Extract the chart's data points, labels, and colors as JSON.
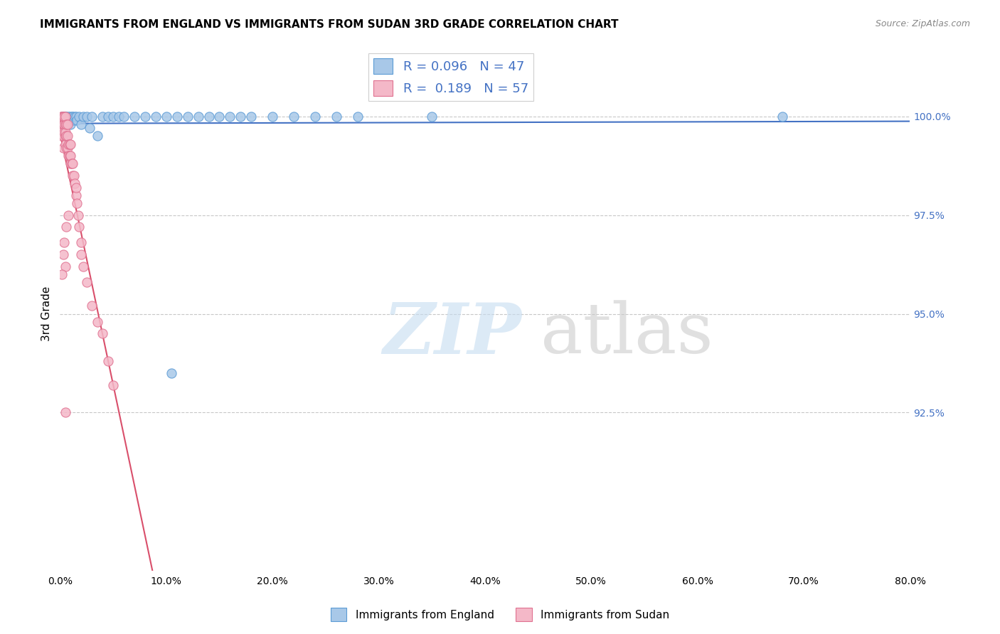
{
  "title": "IMMIGRANTS FROM ENGLAND VS IMMIGRANTS FROM SUDAN 3RD GRADE CORRELATION CHART",
  "source": "Source: ZipAtlas.com",
  "ylabel": "3rd Grade",
  "x_tick_labels": [
    "0.0%",
    "10.0%",
    "20.0%",
    "30.0%",
    "40.0%",
    "50.0%",
    "60.0%",
    "70.0%",
    "80.0%"
  ],
  "x_tick_values": [
    0.0,
    10.0,
    20.0,
    30.0,
    40.0,
    50.0,
    60.0,
    70.0,
    80.0
  ],
  "y_tick_labels_right": [
    "100.0%",
    "97.5%",
    "95.0%",
    "92.5%"
  ],
  "y_tick_values": [
    100.0,
    97.5,
    95.0,
    92.5
  ],
  "xlim": [
    0.0,
    80.0
  ],
  "ylim": [
    88.5,
    101.5
  ],
  "legend_label_england": "Immigrants from England",
  "legend_label_sudan": "Immigrants from Sudan",
  "england_color": "#a8c8e8",
  "sudan_color": "#f4b8c8",
  "england_edge_color": "#5b9bd5",
  "sudan_edge_color": "#e07090",
  "england_line_color": "#4472c4",
  "sudan_line_color": "#d94f6b",
  "england_R": 0.096,
  "england_N": 47,
  "sudan_R": 0.189,
  "sudan_N": 57,
  "background_color": "#ffffff",
  "grid_color": "#c8c8c8",
  "right_axis_color": "#4472c4",
  "eng_x": [
    0.2,
    0.3,
    0.4,
    0.5,
    0.6,
    0.7,
    0.8,
    0.9,
    1.0,
    1.1,
    1.2,
    1.3,
    1.4,
    1.5,
    1.6,
    1.8,
    2.0,
    2.2,
    2.5,
    2.8,
    3.0,
    3.5,
    4.0,
    4.5,
    5.0,
    5.5,
    6.0,
    7.0,
    8.0,
    9.0,
    10.0,
    11.0,
    12.0,
    13.0,
    14.0,
    15.0,
    16.0,
    17.0,
    18.0,
    20.0,
    22.0,
    24.0,
    26.0,
    28.0,
    35.0,
    68.0,
    10.5
  ],
  "eng_y": [
    100.0,
    99.8,
    100.0,
    100.0,
    100.0,
    99.9,
    100.0,
    100.0,
    99.8,
    100.0,
    100.0,
    99.9,
    100.0,
    100.0,
    99.9,
    100.0,
    99.8,
    100.0,
    100.0,
    99.7,
    100.0,
    99.5,
    100.0,
    100.0,
    100.0,
    100.0,
    100.0,
    100.0,
    100.0,
    100.0,
    100.0,
    100.0,
    100.0,
    100.0,
    100.0,
    100.0,
    100.0,
    100.0,
    100.0,
    100.0,
    100.0,
    100.0,
    100.0,
    100.0,
    100.0,
    100.0,
    93.5
  ],
  "sud_x": [
    0.1,
    0.1,
    0.1,
    0.2,
    0.2,
    0.2,
    0.3,
    0.3,
    0.3,
    0.3,
    0.4,
    0.4,
    0.4,
    0.5,
    0.5,
    0.5,
    0.5,
    0.5,
    0.6,
    0.6,
    0.6,
    0.7,
    0.7,
    0.7,
    0.8,
    0.8,
    0.9,
    0.9,
    1.0,
    1.0,
    1.0,
    1.1,
    1.2,
    1.2,
    1.3,
    1.4,
    1.5,
    1.5,
    1.6,
    1.7,
    1.8,
    2.0,
    2.0,
    2.2,
    2.5,
    3.0,
    3.5,
    4.0,
    4.5,
    5.0,
    0.8,
    0.6,
    0.4,
    0.3,
    0.5,
    0.2,
    0.5
  ],
  "sud_y": [
    99.8,
    100.0,
    99.5,
    99.8,
    100.0,
    99.6,
    99.5,
    99.8,
    100.0,
    99.2,
    99.6,
    99.8,
    100.0,
    99.3,
    99.5,
    99.8,
    100.0,
    99.6,
    99.2,
    99.5,
    99.8,
    99.2,
    99.5,
    99.8,
    99.0,
    99.3,
    99.0,
    99.3,
    98.8,
    99.0,
    99.3,
    98.8,
    98.5,
    98.8,
    98.5,
    98.3,
    98.0,
    98.2,
    97.8,
    97.5,
    97.2,
    96.8,
    96.5,
    96.2,
    95.8,
    95.2,
    94.8,
    94.5,
    93.8,
    93.2,
    97.5,
    97.2,
    96.8,
    96.5,
    96.2,
    96.0,
    92.5
  ],
  "eng_trendline_x": [
    0.0,
    80.0
  ],
  "eng_trendline_y": [
    99.2,
    100.0
  ],
  "sud_trendline_x0y0": [
    0.0,
    96.8
  ],
  "sud_trendline_x1y1": [
    5.0,
    99.2
  ]
}
